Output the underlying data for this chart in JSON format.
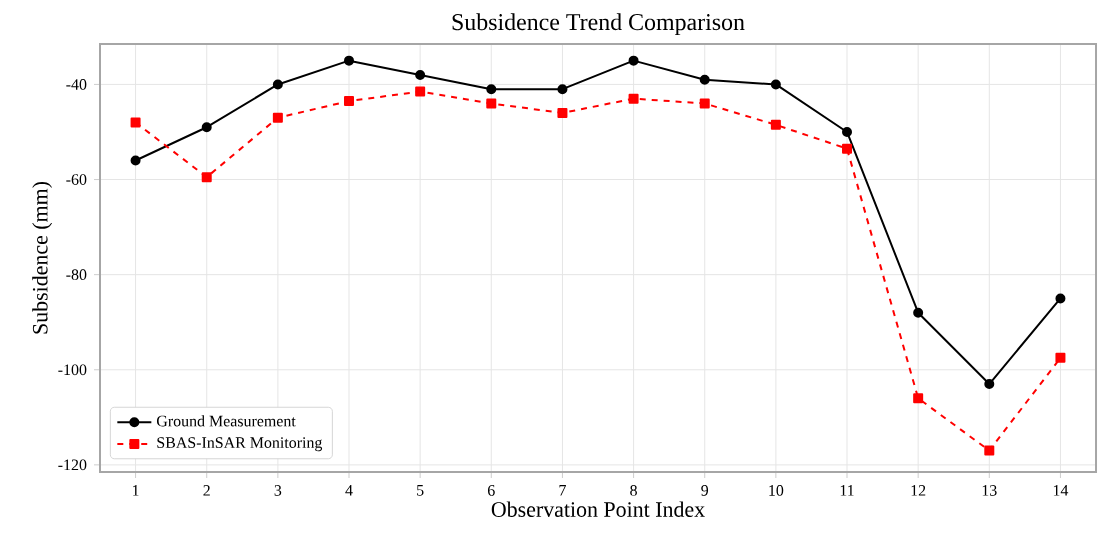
{
  "chart_data": {
    "type": "line",
    "title": "Subsidence Trend Comparison",
    "xlabel": "Observation Point Index",
    "ylabel": "Subsidence (mm)",
    "x": [
      1,
      2,
      3,
      4,
      5,
      6,
      7,
      8,
      9,
      10,
      11,
      12,
      13,
      14
    ],
    "series": [
      {
        "name": "Ground Measurement",
        "color": "#000000",
        "marker": "circle",
        "line_style": "solid",
        "values": [
          -56,
          -49,
          -40,
          -35,
          -38,
          -41,
          -41,
          -35,
          -39,
          -40,
          -50,
          -88,
          -103,
          -85
        ]
      },
      {
        "name": "SBAS-InSAR Monitoring",
        "color": "#ff0000",
        "marker": "square",
        "line_style": "dashed",
        "values": [
          -48,
          -59.5,
          -47,
          -43.5,
          -41.5,
          -44,
          -46,
          -43,
          -44,
          -48.5,
          -53.5,
          -106,
          -117,
          -97.5
        ]
      }
    ],
    "xlim": [
      0.5,
      14.5
    ],
    "ylim": [
      -121.5,
      -31.5
    ],
    "xticks": [
      1,
      2,
      3,
      4,
      5,
      6,
      7,
      8,
      9,
      10,
      11,
      12,
      13,
      14
    ],
    "yticks": [
      -120,
      -100,
      -80,
      -60,
      -40
    ],
    "grid": true,
    "legend": "bottom left"
  }
}
